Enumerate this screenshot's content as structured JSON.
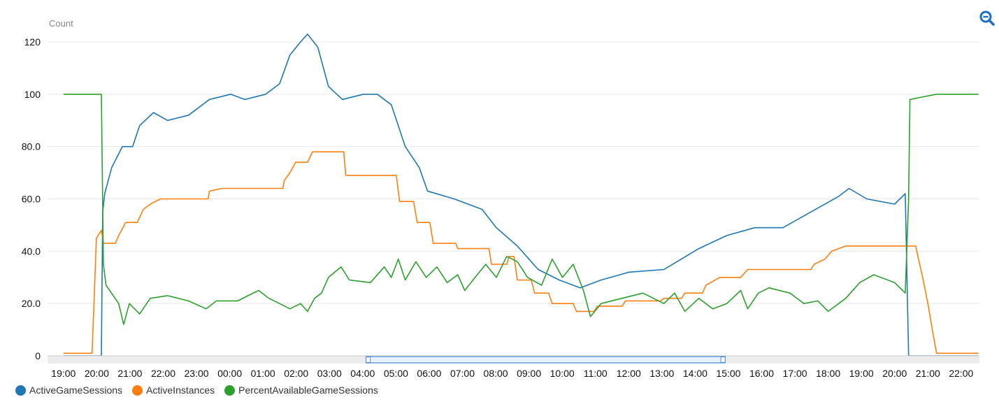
{
  "chart_data": {
    "type": "line",
    "ylabel": "Count",
    "x_units": "hours since 19:00 (day 1)",
    "xlim": [
      -0.48,
      27.55
    ],
    "ylim": [
      0,
      125
    ],
    "grid": true,
    "legend_position": "bottom-left",
    "x_ticks": [
      {
        "h": 0,
        "label": "19:00"
      },
      {
        "h": 1,
        "label": "20:00"
      },
      {
        "h": 2,
        "label": "21:00"
      },
      {
        "h": 3,
        "label": "22:00"
      },
      {
        "h": 4,
        "label": "23:00"
      },
      {
        "h": 5,
        "label": "00:00"
      },
      {
        "h": 6,
        "label": "01:00"
      },
      {
        "h": 7,
        "label": "02:00"
      },
      {
        "h": 8,
        "label": "03:00"
      },
      {
        "h": 9,
        "label": "04:00"
      },
      {
        "h": 10,
        "label": "05:00"
      },
      {
        "h": 11,
        "label": "06:00"
      },
      {
        "h": 12,
        "label": "07:00"
      },
      {
        "h": 13,
        "label": "08:00"
      },
      {
        "h": 14,
        "label": "09:00"
      },
      {
        "h": 15,
        "label": "10:00"
      },
      {
        "h": 16,
        "label": "11:00"
      },
      {
        "h": 17,
        "label": "12:00"
      },
      {
        "h": 18,
        "label": "13:00"
      },
      {
        "h": 19,
        "label": "14:00"
      },
      {
        "h": 20,
        "label": "15:00"
      },
      {
        "h": 21,
        "label": "16:00"
      },
      {
        "h": 22,
        "label": "17:00"
      },
      {
        "h": 23,
        "label": "18:00"
      },
      {
        "h": 24,
        "label": "19:00"
      },
      {
        "h": 25,
        "label": "20:00"
      },
      {
        "h": 26,
        "label": "21:00"
      },
      {
        "h": 27,
        "label": "22:00"
      }
    ],
    "y_ticks": [
      {
        "v": 0,
        "label": "0"
      },
      {
        "v": 20,
        "label": "20.0"
      },
      {
        "v": 40,
        "label": "40.0"
      },
      {
        "v": 60,
        "label": "60.0"
      },
      {
        "v": 80,
        "label": "80.0"
      },
      {
        "v": 100,
        "label": "100"
      },
      {
        "v": 120,
        "label": "120"
      }
    ],
    "brush_range_hours": [
      9.1,
      19.9
    ],
    "series": [
      {
        "name": "ActiveGameSessions",
        "color": "#1f77b4",
        "points": [
          [
            0,
            0
          ],
          [
            1.14,
            0
          ],
          [
            1.18,
            55
          ],
          [
            1.24,
            62
          ],
          [
            1.45,
            72
          ],
          [
            1.77,
            80
          ],
          [
            2.08,
            80
          ],
          [
            2.29,
            88
          ],
          [
            2.71,
            93
          ],
          [
            3.13,
            90
          ],
          [
            3.76,
            92
          ],
          [
            4.39,
            98
          ],
          [
            5.03,
            100
          ],
          [
            5.45,
            98
          ],
          [
            6.08,
            100
          ],
          [
            6.5,
            104
          ],
          [
            6.81,
            115
          ],
          [
            7.13,
            120
          ],
          [
            7.34,
            123
          ],
          [
            7.65,
            118
          ],
          [
            7.97,
            103
          ],
          [
            8.39,
            98
          ],
          [
            9.02,
            100
          ],
          [
            9.44,
            100
          ],
          [
            9.86,
            96
          ],
          [
            10.28,
            80
          ],
          [
            10.7,
            72
          ],
          [
            10.95,
            63
          ],
          [
            11.75,
            60
          ],
          [
            12.59,
            56
          ],
          [
            13.02,
            49
          ],
          [
            13.65,
            42
          ],
          [
            14.28,
            33
          ],
          [
            14.91,
            29
          ],
          [
            15.54,
            26
          ],
          [
            16.17,
            29
          ],
          [
            17.01,
            32
          ],
          [
            18.06,
            33
          ],
          [
            19.11,
            41
          ],
          [
            19.95,
            46
          ],
          [
            20.79,
            49
          ],
          [
            21.64,
            49
          ],
          [
            22.48,
            55
          ],
          [
            23.32,
            61
          ],
          [
            23.63,
            64
          ],
          [
            24.16,
            60
          ],
          [
            25.0,
            58
          ],
          [
            25.32,
            62
          ],
          [
            25.42,
            0
          ],
          [
            27.52,
            0
          ]
        ]
      },
      {
        "name": "ActiveInstances",
        "color": "#ff7f0e",
        "points": [
          [
            0,
            1
          ],
          [
            0.86,
            1
          ],
          [
            0.99,
            45
          ],
          [
            1.14,
            48
          ],
          [
            1.2,
            43
          ],
          [
            1.56,
            43
          ],
          [
            1.66,
            46
          ],
          [
            1.87,
            51
          ],
          [
            2.22,
            51
          ],
          [
            2.4,
            56
          ],
          [
            2.61,
            58
          ],
          [
            2.92,
            60
          ],
          [
            4.35,
            60
          ],
          [
            4.39,
            63
          ],
          [
            4.77,
            64
          ],
          [
            6.6,
            64
          ],
          [
            6.64,
            67
          ],
          [
            6.81,
            70
          ],
          [
            6.98,
            74
          ],
          [
            7.34,
            74
          ],
          [
            7.49,
            78
          ],
          [
            8.43,
            78
          ],
          [
            8.49,
            69
          ],
          [
            10.01,
            69
          ],
          [
            10.11,
            59
          ],
          [
            10.53,
            59
          ],
          [
            10.64,
            51
          ],
          [
            11.02,
            51
          ],
          [
            11.12,
            43
          ],
          [
            11.8,
            43
          ],
          [
            11.86,
            41
          ],
          [
            12.8,
            41
          ],
          [
            12.87,
            35
          ],
          [
            13.33,
            35
          ],
          [
            13.4,
            38
          ],
          [
            13.55,
            38
          ],
          [
            13.65,
            29
          ],
          [
            14.07,
            29
          ],
          [
            14.17,
            24
          ],
          [
            14.59,
            24
          ],
          [
            14.7,
            20
          ],
          [
            15.33,
            20
          ],
          [
            15.43,
            17
          ],
          [
            15.96,
            17
          ],
          [
            16.06,
            19
          ],
          [
            16.8,
            19
          ],
          [
            16.9,
            21
          ],
          [
            17.96,
            21
          ],
          [
            18.06,
            22
          ],
          [
            18.59,
            22
          ],
          [
            18.69,
            24
          ],
          [
            19.22,
            24
          ],
          [
            19.32,
            27
          ],
          [
            19.74,
            30
          ],
          [
            20.37,
            30
          ],
          [
            20.58,
            33
          ],
          [
            22.48,
            33
          ],
          [
            22.58,
            35
          ],
          [
            22.9,
            37
          ],
          [
            23.11,
            40
          ],
          [
            23.53,
            42
          ],
          [
            25.63,
            42
          ],
          [
            25.84,
            30
          ],
          [
            26.0,
            20
          ],
          [
            26.16,
            8
          ],
          [
            26.26,
            1
          ],
          [
            27.52,
            1
          ]
        ]
      },
      {
        "name": "PercentAvailableGameSessions",
        "color": "#2ca02c",
        "points": [
          [
            0,
            100
          ],
          [
            1.14,
            100
          ],
          [
            1.2,
            35
          ],
          [
            1.28,
            27
          ],
          [
            1.66,
            20
          ],
          [
            1.81,
            12
          ],
          [
            1.98,
            20
          ],
          [
            2.29,
            16
          ],
          [
            2.61,
            22
          ],
          [
            3.13,
            23
          ],
          [
            3.76,
            21
          ],
          [
            4.29,
            18
          ],
          [
            4.6,
            21
          ],
          [
            5.24,
            21
          ],
          [
            5.55,
            23
          ],
          [
            5.87,
            25
          ],
          [
            6.18,
            22
          ],
          [
            6.5,
            20
          ],
          [
            6.81,
            18
          ],
          [
            7.13,
            20
          ],
          [
            7.34,
            17
          ],
          [
            7.55,
            22
          ],
          [
            7.76,
            24
          ],
          [
            7.97,
            30
          ],
          [
            8.35,
            34
          ],
          [
            8.6,
            29
          ],
          [
            9.23,
            28
          ],
          [
            9.65,
            34
          ],
          [
            9.86,
            30
          ],
          [
            10.07,
            37
          ],
          [
            10.28,
            29
          ],
          [
            10.6,
            36
          ],
          [
            10.91,
            30
          ],
          [
            11.23,
            34
          ],
          [
            11.54,
            28
          ],
          [
            11.86,
            31
          ],
          [
            12.07,
            25
          ],
          [
            12.38,
            30
          ],
          [
            12.7,
            35
          ],
          [
            13.02,
            30
          ],
          [
            13.33,
            38
          ],
          [
            13.65,
            36
          ],
          [
            13.96,
            30
          ],
          [
            14.38,
            27
          ],
          [
            14.7,
            37
          ],
          [
            15.01,
            30
          ],
          [
            15.33,
            35
          ],
          [
            15.64,
            25
          ],
          [
            15.85,
            15
          ],
          [
            16.17,
            20
          ],
          [
            16.8,
            22
          ],
          [
            17.43,
            24
          ],
          [
            18.06,
            20
          ],
          [
            18.38,
            24
          ],
          [
            18.69,
            17
          ],
          [
            19.11,
            22
          ],
          [
            19.53,
            18
          ],
          [
            19.95,
            20
          ],
          [
            20.37,
            25
          ],
          [
            20.58,
            18
          ],
          [
            20.9,
            24
          ],
          [
            21.22,
            26
          ],
          [
            21.85,
            24
          ],
          [
            22.27,
            20
          ],
          [
            22.69,
            21
          ],
          [
            23.0,
            17
          ],
          [
            23.53,
            22
          ],
          [
            23.95,
            28
          ],
          [
            24.37,
            31
          ],
          [
            25.0,
            28
          ],
          [
            25.32,
            24
          ],
          [
            25.42,
            60
          ],
          [
            25.46,
            98
          ],
          [
            25.84,
            99
          ],
          [
            26.26,
            100
          ],
          [
            27.52,
            100
          ]
        ]
      }
    ]
  },
  "toolbar": {
    "zoom_out_icon": "zoom-out-icon"
  }
}
